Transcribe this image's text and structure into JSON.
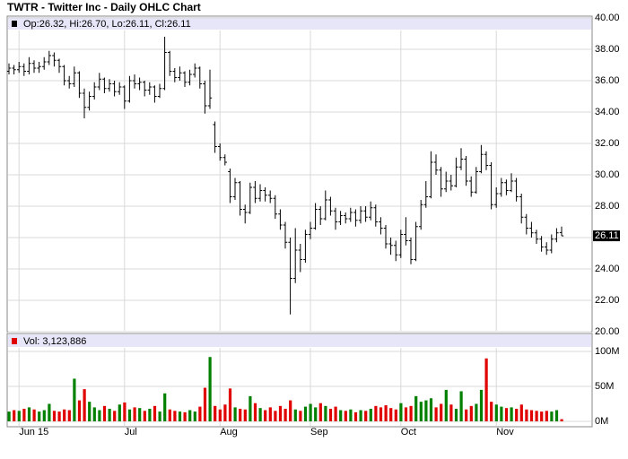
{
  "chart_data": {
    "type": "ohlc",
    "title": "TWTR - Twitter Inc - Daily OHLC Chart",
    "price_legend": "Op:26.32, Hi:26.70, Lo:26.11, Cl:26.11",
    "volume_legend": "Vol: 3,123,886",
    "open": [
      36.6,
      36.8,
      36.7,
      36.9,
      36.6,
      37.1,
      36.8,
      36.9,
      37.2,
      37.6,
      37.3,
      36.9,
      36.0,
      35.8,
      36.5,
      35.2,
      34.3,
      35.0,
      35.6,
      36.1,
      35.5,
      35.8,
      35.3,
      35.6,
      34.7,
      36.0,
      35.8,
      35.9,
      35.4,
      35.6,
      35.0,
      35.5,
      37.8,
      36.6,
      36.2,
      36.5,
      35.9,
      36.4,
      36.8,
      35.8,
      34.4,
      33.2,
      31.8,
      31.1,
      30.2,
      28.6,
      29.5,
      27.8,
      27.6,
      29.2,
      28.5,
      29.0,
      28.7,
      28.5,
      27.5,
      26.8,
      25.7,
      23.4,
      25.2,
      24.6,
      26.2,
      26.6,
      27.8,
      27.2,
      28.4,
      27.7,
      27.0,
      27.4,
      27.2,
      27.6,
      27.1,
      27.7,
      27.3,
      27.9,
      27.0,
      26.6,
      25.6,
      25.5,
      24.9,
      26.2,
      25.8,
      24.6,
      26.7,
      28.1,
      28.6,
      30.8,
      30.3,
      29.1,
      29.6,
      29.3,
      30.5,
      31.0,
      29.6,
      28.9,
      30.2,
      31.3,
      30.6,
      28.1,
      28.8,
      29.5,
      29.0,
      29.6,
      28.6,
      27.3,
      26.6,
      26.3,
      25.9,
      25.4,
      25.2,
      25.9,
      26.32
    ],
    "high": [
      37.1,
      37.0,
      37.2,
      37.1,
      37.5,
      37.3,
      37.2,
      37.5,
      37.9,
      37.8,
      37.4,
      37.0,
      36.3,
      36.9,
      36.6,
      35.5,
      35.3,
      35.9,
      36.5,
      36.2,
      36.1,
      36.0,
      35.9,
      35.7,
      36.3,
      36.4,
      36.2,
      36.0,
      35.9,
      35.7,
      35.8,
      38.8,
      37.9,
      36.8,
      36.9,
      36.6,
      36.7,
      37.1,
      36.9,
      36.0,
      36.7,
      33.4,
      32.0,
      31.3,
      30.4,
      29.8,
      29.6,
      28.1,
      29.5,
      29.6,
      29.4,
      29.2,
      29.0,
      28.7,
      27.8,
      27.0,
      26.0,
      26.6,
      25.6,
      26.5,
      27.0,
      28.2,
      28.0,
      29.0,
      28.6,
      27.9,
      27.7,
      27.6,
      27.9,
      27.8,
      28.0,
      28.0,
      28.3,
      28.1,
      27.3,
      26.8,
      26.0,
      25.8,
      26.5,
      27.3,
      26.0,
      27.0,
      28.4,
      29.6,
      31.5,
      31.3,
      30.5,
      30.2,
      30.0,
      31.1,
      31.7,
      31.2,
      29.9,
      30.5,
      31.9,
      31.5,
      30.8,
      29.2,
      29.8,
      29.7,
      30.1,
      29.8,
      28.8,
      27.5,
      27.0,
      26.5,
      26.1,
      25.7,
      26.2,
      26.6,
      26.7
    ],
    "low": [
      36.4,
      36.4,
      36.5,
      36.3,
      36.4,
      36.5,
      36.5,
      36.7,
      37.0,
      36.9,
      36.5,
      35.7,
      35.5,
      35.6,
      34.9,
      33.6,
      34.1,
      34.8,
      35.4,
      35.2,
      35.3,
      35.0,
      35.1,
      34.2,
      34.6,
      35.5,
      35.4,
      35.0,
      35.1,
      34.6,
      34.9,
      35.4,
      36.3,
      35.9,
      36.0,
      35.6,
      35.7,
      36.2,
      35.5,
      33.9,
      34.2,
      31.4,
      30.9,
      30.6,
      28.2,
      28.4,
      27.4,
      26.9,
      27.5,
      28.2,
      28.3,
      28.3,
      28.2,
      27.2,
      26.5,
      25.3,
      21.1,
      23.1,
      23.8,
      24.4,
      25.9,
      26.5,
      26.8,
      27.1,
      27.4,
      26.5,
      26.8,
      26.9,
      27.0,
      26.7,
      26.9,
      27.0,
      27.1,
      26.7,
      26.2,
      25.3,
      24.9,
      24.5,
      24.7,
      25.5,
      24.3,
      24.5,
      26.5,
      27.9,
      28.5,
      30.0,
      28.6,
      28.9,
      29.0,
      29.2,
      30.3,
      29.3,
      28.6,
      28.8,
      30.1,
      30.3,
      27.8,
      27.9,
      28.6,
      28.7,
      28.9,
      28.3,
      26.9,
      26.2,
      26.0,
      25.6,
      25.1,
      24.9,
      25.0,
      25.7,
      26.11
    ],
    "close": [
      36.8,
      36.7,
      36.9,
      36.6,
      37.1,
      36.8,
      36.9,
      37.2,
      37.6,
      37.3,
      36.9,
      36.0,
      35.8,
      36.5,
      35.2,
      34.3,
      35.0,
      35.6,
      36.1,
      35.5,
      35.8,
      35.3,
      35.6,
      34.7,
      36.0,
      35.8,
      35.9,
      35.4,
      35.6,
      35.0,
      35.5,
      37.8,
      36.6,
      36.2,
      36.5,
      35.9,
      36.4,
      36.8,
      35.8,
      34.4,
      34.9,
      31.8,
      31.1,
      30.8,
      28.6,
      29.5,
      27.8,
      27.6,
      29.2,
      28.5,
      29.0,
      28.7,
      28.5,
      27.5,
      26.8,
      25.7,
      23.4,
      25.2,
      24.6,
      26.2,
      26.6,
      27.8,
      27.2,
      28.4,
      27.7,
      27.0,
      27.4,
      27.2,
      27.6,
      27.1,
      27.7,
      27.3,
      27.9,
      27.0,
      26.6,
      25.6,
      25.5,
      24.9,
      26.2,
      25.8,
      24.6,
      26.7,
      28.1,
      28.6,
      30.8,
      30.3,
      29.1,
      29.6,
      29.3,
      30.5,
      31.0,
      29.6,
      28.9,
      30.2,
      31.3,
      30.6,
      28.1,
      28.8,
      29.5,
      29.0,
      29.6,
      28.6,
      27.3,
      26.6,
      26.3,
      25.9,
      25.4,
      25.2,
      25.9,
      26.3,
      26.11
    ],
    "volume": [
      14,
      16,
      15,
      18,
      20,
      17,
      14,
      16,
      25,
      15,
      14,
      17,
      16,
      61,
      30,
      46,
      28,
      20,
      16,
      22,
      18,
      15,
      24,
      27,
      17,
      20,
      19,
      15,
      18,
      22,
      14,
      40,
      17,
      15,
      14,
      13,
      16,
      14,
      21,
      48,
      92,
      22,
      17,
      24,
      47,
      20,
      18,
      17,
      36,
      26,
      19,
      16,
      20,
      15,
      22,
      18,
      30,
      17,
      15,
      21,
      25,
      20,
      26,
      22,
      18,
      21,
      16,
      15,
      17,
      13,
      16,
      15,
      18,
      22,
      20,
      23,
      19,
      17,
      26,
      20,
      22,
      36,
      28,
      30,
      33,
      20,
      25,
      45,
      24,
      18,
      43,
      17,
      22,
      25,
      45,
      90,
      28,
      24,
      21,
      19,
      20,
      18,
      24,
      17,
      16,
      15,
      14,
      15,
      14,
      16,
      3.12
    ],
    "ylim": [
      20,
      40
    ],
    "yticks": [
      {
        "value": 20,
        "label": "20.00"
      },
      {
        "value": 22,
        "label": "22.00"
      },
      {
        "value": 24,
        "label": "24.00"
      },
      {
        "value": 26,
        "label": "26.00"
      },
      {
        "value": 28,
        "label": "28.00"
      },
      {
        "value": 30,
        "label": "30.00"
      },
      {
        "value": 32,
        "label": "32.00"
      },
      {
        "value": 34,
        "label": "34.00"
      },
      {
        "value": 36,
        "label": "36.00"
      },
      {
        "value": 38,
        "label": "38.00"
      },
      {
        "value": 40,
        "label": "40.00"
      }
    ],
    "y2lim": [
      0,
      100
    ],
    "y2ticks": [
      {
        "value": 0,
        "label": "0M"
      },
      {
        "value": 50,
        "label": "50M"
      },
      {
        "value": 100,
        "label": "100M"
      }
    ],
    "xticks": [
      {
        "value": 2,
        "label": "Jun 15"
      },
      {
        "value": 23,
        "label": "Jul"
      },
      {
        "value": 42,
        "label": "Aug"
      },
      {
        "value": 60,
        "label": "Sep"
      },
      {
        "value": 78,
        "label": "Oct"
      },
      {
        "value": 97,
        "label": "Nov"
      }
    ],
    "bar_color": "#000000",
    "up_color": "#008000",
    "down_color": "#e00000",
    "price_legend_color": "#000000",
    "grid": true
  }
}
